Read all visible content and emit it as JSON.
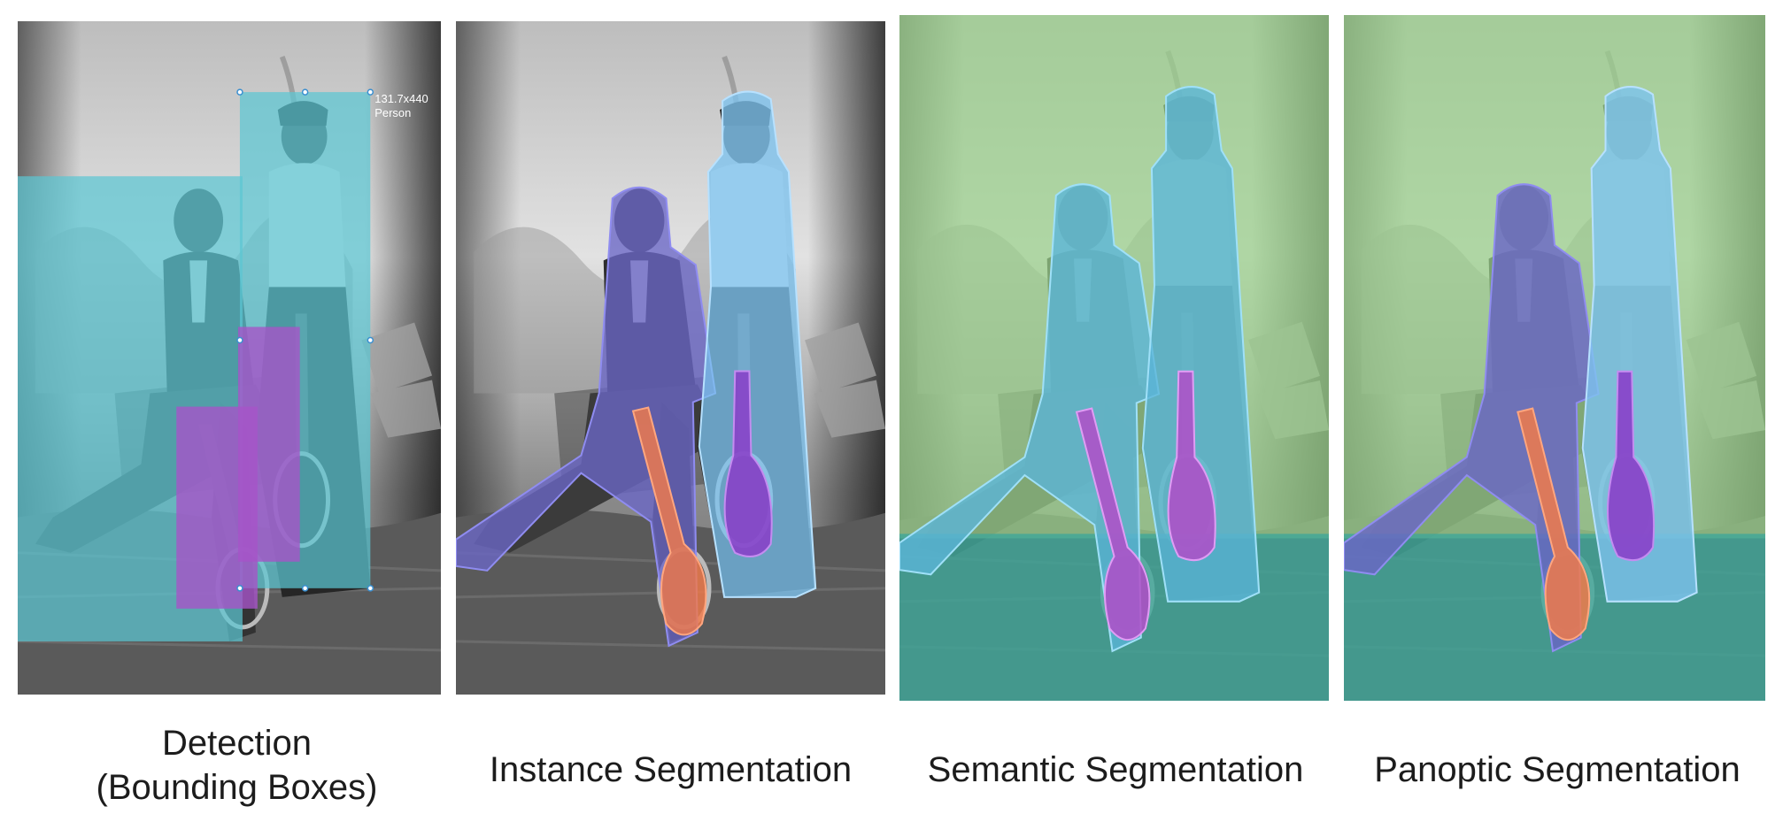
{
  "panels": [
    {
      "id": "detection",
      "caption_lines": [
        "Detection",
        "(Bounding Boxes)"
      ],
      "box_label_dims": "131.7x440",
      "box_label_class": "Person"
    },
    {
      "id": "instance",
      "caption_lines": [
        "Instance Segmentation"
      ]
    },
    {
      "id": "semantic",
      "caption_lines": [
        "Semantic Segmentation"
      ]
    },
    {
      "id": "panoptic",
      "caption_lines": [
        "Panoptic Segmentation"
      ]
    }
  ],
  "colors": {
    "person_box": "#5cc6d2",
    "racket_box": "#a654c8",
    "person_man": "#6a66c6",
    "person_woman": "#7ec3ee",
    "racket_orange": "#f07a4a",
    "racket_purple": "#8a3cc8",
    "sky_green": "#9bd18c",
    "ground_teal": "#3fa89a",
    "person_semantic": "#5bb5d8",
    "racket_semantic": "#b24cc8"
  }
}
